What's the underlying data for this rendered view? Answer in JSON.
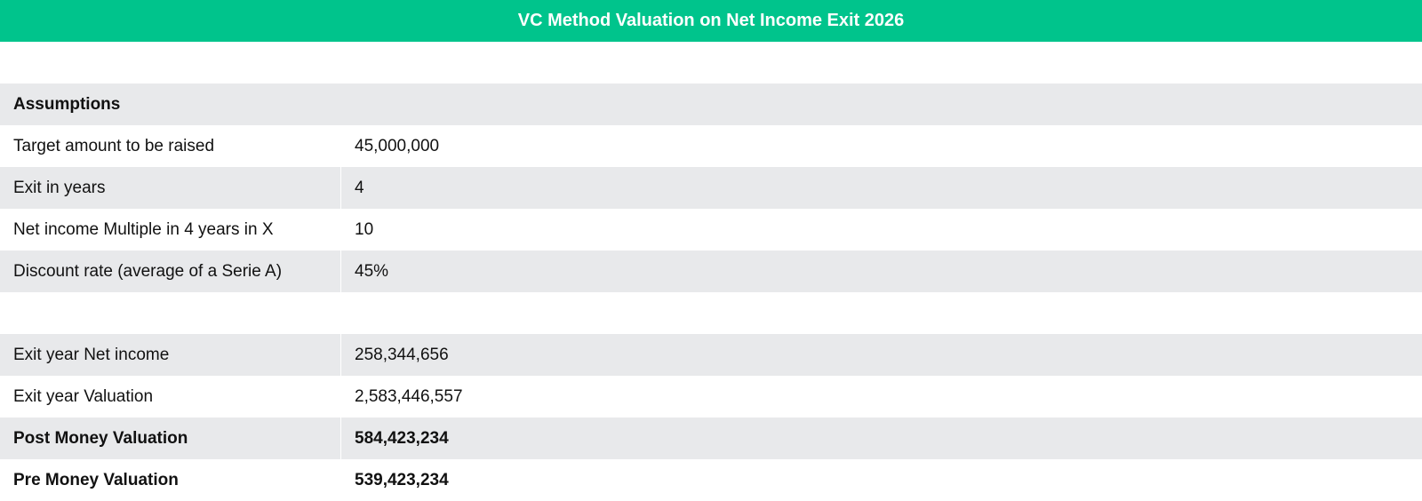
{
  "header": {
    "title": "VC Method Valuation on Net Income Exit 2026"
  },
  "assumptions": {
    "heading": "Assumptions",
    "rows": [
      {
        "label": "Target amount to be raised",
        "value": "45,000,000"
      },
      {
        "label": "Exit in years",
        "value": "4"
      },
      {
        "label": "Net income Multiple in 4 years in X",
        "value": "10"
      },
      {
        "label": "Discount rate (average of a Serie A)",
        "value": "45%"
      }
    ]
  },
  "results": {
    "rows": [
      {
        "label": "Exit year Net income",
        "value": "258,344,656"
      },
      {
        "label": "Exit year Valuation",
        "value": "2,583,446,557"
      },
      {
        "label": "Post Money Valuation",
        "value": "584,423,234"
      },
      {
        "label": "Pre Money Valuation",
        "value": "539,423,234"
      }
    ]
  },
  "colors": {
    "header_bg": "#00c48c",
    "row_alt_bg": "#e8e9eb"
  }
}
